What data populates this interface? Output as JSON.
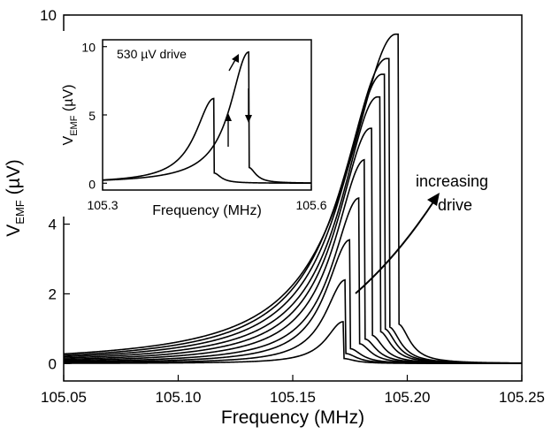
{
  "chart_data": [
    {
      "type": "line",
      "title": "",
      "xlabel": "Frequency (MHz)",
      "ylabel_main": "V",
      "ylabel_sub": "EMF",
      "ylabel_unit": " (µV)",
      "xlim": [
        105.05,
        105.25
      ],
      "ylim": [
        -0.5,
        10
      ],
      "x_ticks": [
        "105.05",
        "105.10",
        "105.15",
        "105.20",
        "105.25"
      ],
      "x_tick_values": [
        105.05,
        105.1,
        105.15,
        105.2,
        105.25
      ],
      "y_ticks": [
        "0",
        "2",
        "4",
        "6",
        "8",
        "10"
      ],
      "y_tick_values": [
        0,
        2,
        4,
        6,
        8,
        10
      ],
      "annotation": [
        "increasing",
        "drive"
      ],
      "series": [
        {
          "peak_x": 105.172,
          "peak_y": 1.2,
          "drop_x": 105.172
        },
        {
          "peak_x": 105.173,
          "peak_y": 2.4,
          "drop_x": 105.173
        },
        {
          "peak_x": 105.175,
          "peak_y": 3.55,
          "drop_x": 105.175
        },
        {
          "peak_x": 105.179,
          "peak_y": 4.75,
          "drop_x": 105.179
        },
        {
          "peak_x": 105.1815,
          "peak_y": 5.85,
          "drop_x": 105.1815
        },
        {
          "peak_x": 105.184,
          "peak_y": 6.75,
          "drop_x": 105.1845
        },
        {
          "peak_x": 105.187,
          "peak_y": 7.65,
          "drop_x": 105.188
        },
        {
          "peak_x": 105.189,
          "peak_y": 8.3,
          "drop_x": 105.19
        },
        {
          "peak_x": 105.191,
          "peak_y": 8.75,
          "drop_x": 105.192
        },
        {
          "peak_x": 105.195,
          "peak_y": 9.45,
          "drop_x": 105.196
        }
      ]
    },
    {
      "type": "line",
      "title": "530 µV drive",
      "xlabel": "Frequency (MHz)",
      "ylabel_main": "V",
      "ylabel_sub": "EMF",
      "ylabel_unit": " (µV)",
      "xlim": [
        105.3,
        105.6
      ],
      "ylim": [
        -0.5,
        10.5
      ],
      "x_ticks": [
        "105.3",
        "105.6"
      ],
      "x_tick_values": [
        105.3,
        105.6
      ],
      "y_ticks": [
        "0",
        "5",
        "10"
      ],
      "y_tick_values": [
        0,
        5,
        10
      ],
      "series": [
        {
          "direction": "up-sweep",
          "peak_x": 105.51,
          "peak_y": 9.6,
          "drop_x": 105.51
        },
        {
          "direction": "down-sweep",
          "peak_x": 105.46,
          "peak_y": 6.2,
          "drop_x": 105.46
        }
      ]
    }
  ]
}
